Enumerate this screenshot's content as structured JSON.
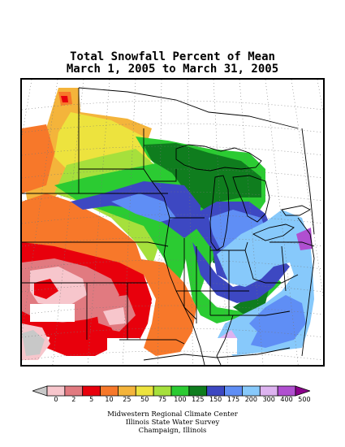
{
  "title": {
    "line1": "Total Snowfall Percent of Mean",
    "line2": "March 1, 2005 to March 31, 2005"
  },
  "legend": {
    "labels": [
      "0",
      "2",
      "5",
      "10",
      "25",
      "50",
      "75",
      "100",
      "125",
      "150",
      "175",
      "200",
      "300",
      "400",
      "500"
    ],
    "colors": [
      "#c8c8c8",
      "#f7c6cc",
      "#e17a80",
      "#e8000c",
      "#f7782a",
      "#f4b43b",
      "#ede33e",
      "#a6e03c",
      "#2bcb32",
      "#0f7d1e",
      "#3d48c2",
      "#5f8ef5",
      "#87c9fb",
      "#ddb3f0",
      "#b04fd0",
      "#8a008a"
    ]
  },
  "credits": {
    "line1": "Midwestern Regional Climate Center",
    "line2": "Illinois State Water Survey",
    "line3": "Champaign, Illinois"
  },
  "colors": {
    "gray": "#c8c8c8",
    "pink": "#f7c6cc",
    "rose": "#e17a80",
    "red": "#e8000c",
    "orange": "#f7782a",
    "yellow_orange": "#f4b43b",
    "yellow": "#ede33e",
    "lime": "#a6e03c",
    "green": "#2bcb32",
    "dark_green": "#0f7d1e",
    "navy": "#3d48c2",
    "blue": "#5f8ef5",
    "light_blue": "#87c9fb",
    "lavender": "#ddb3f0",
    "purple": "#b04fd0",
    "dark_purple": "#8a008a"
  }
}
